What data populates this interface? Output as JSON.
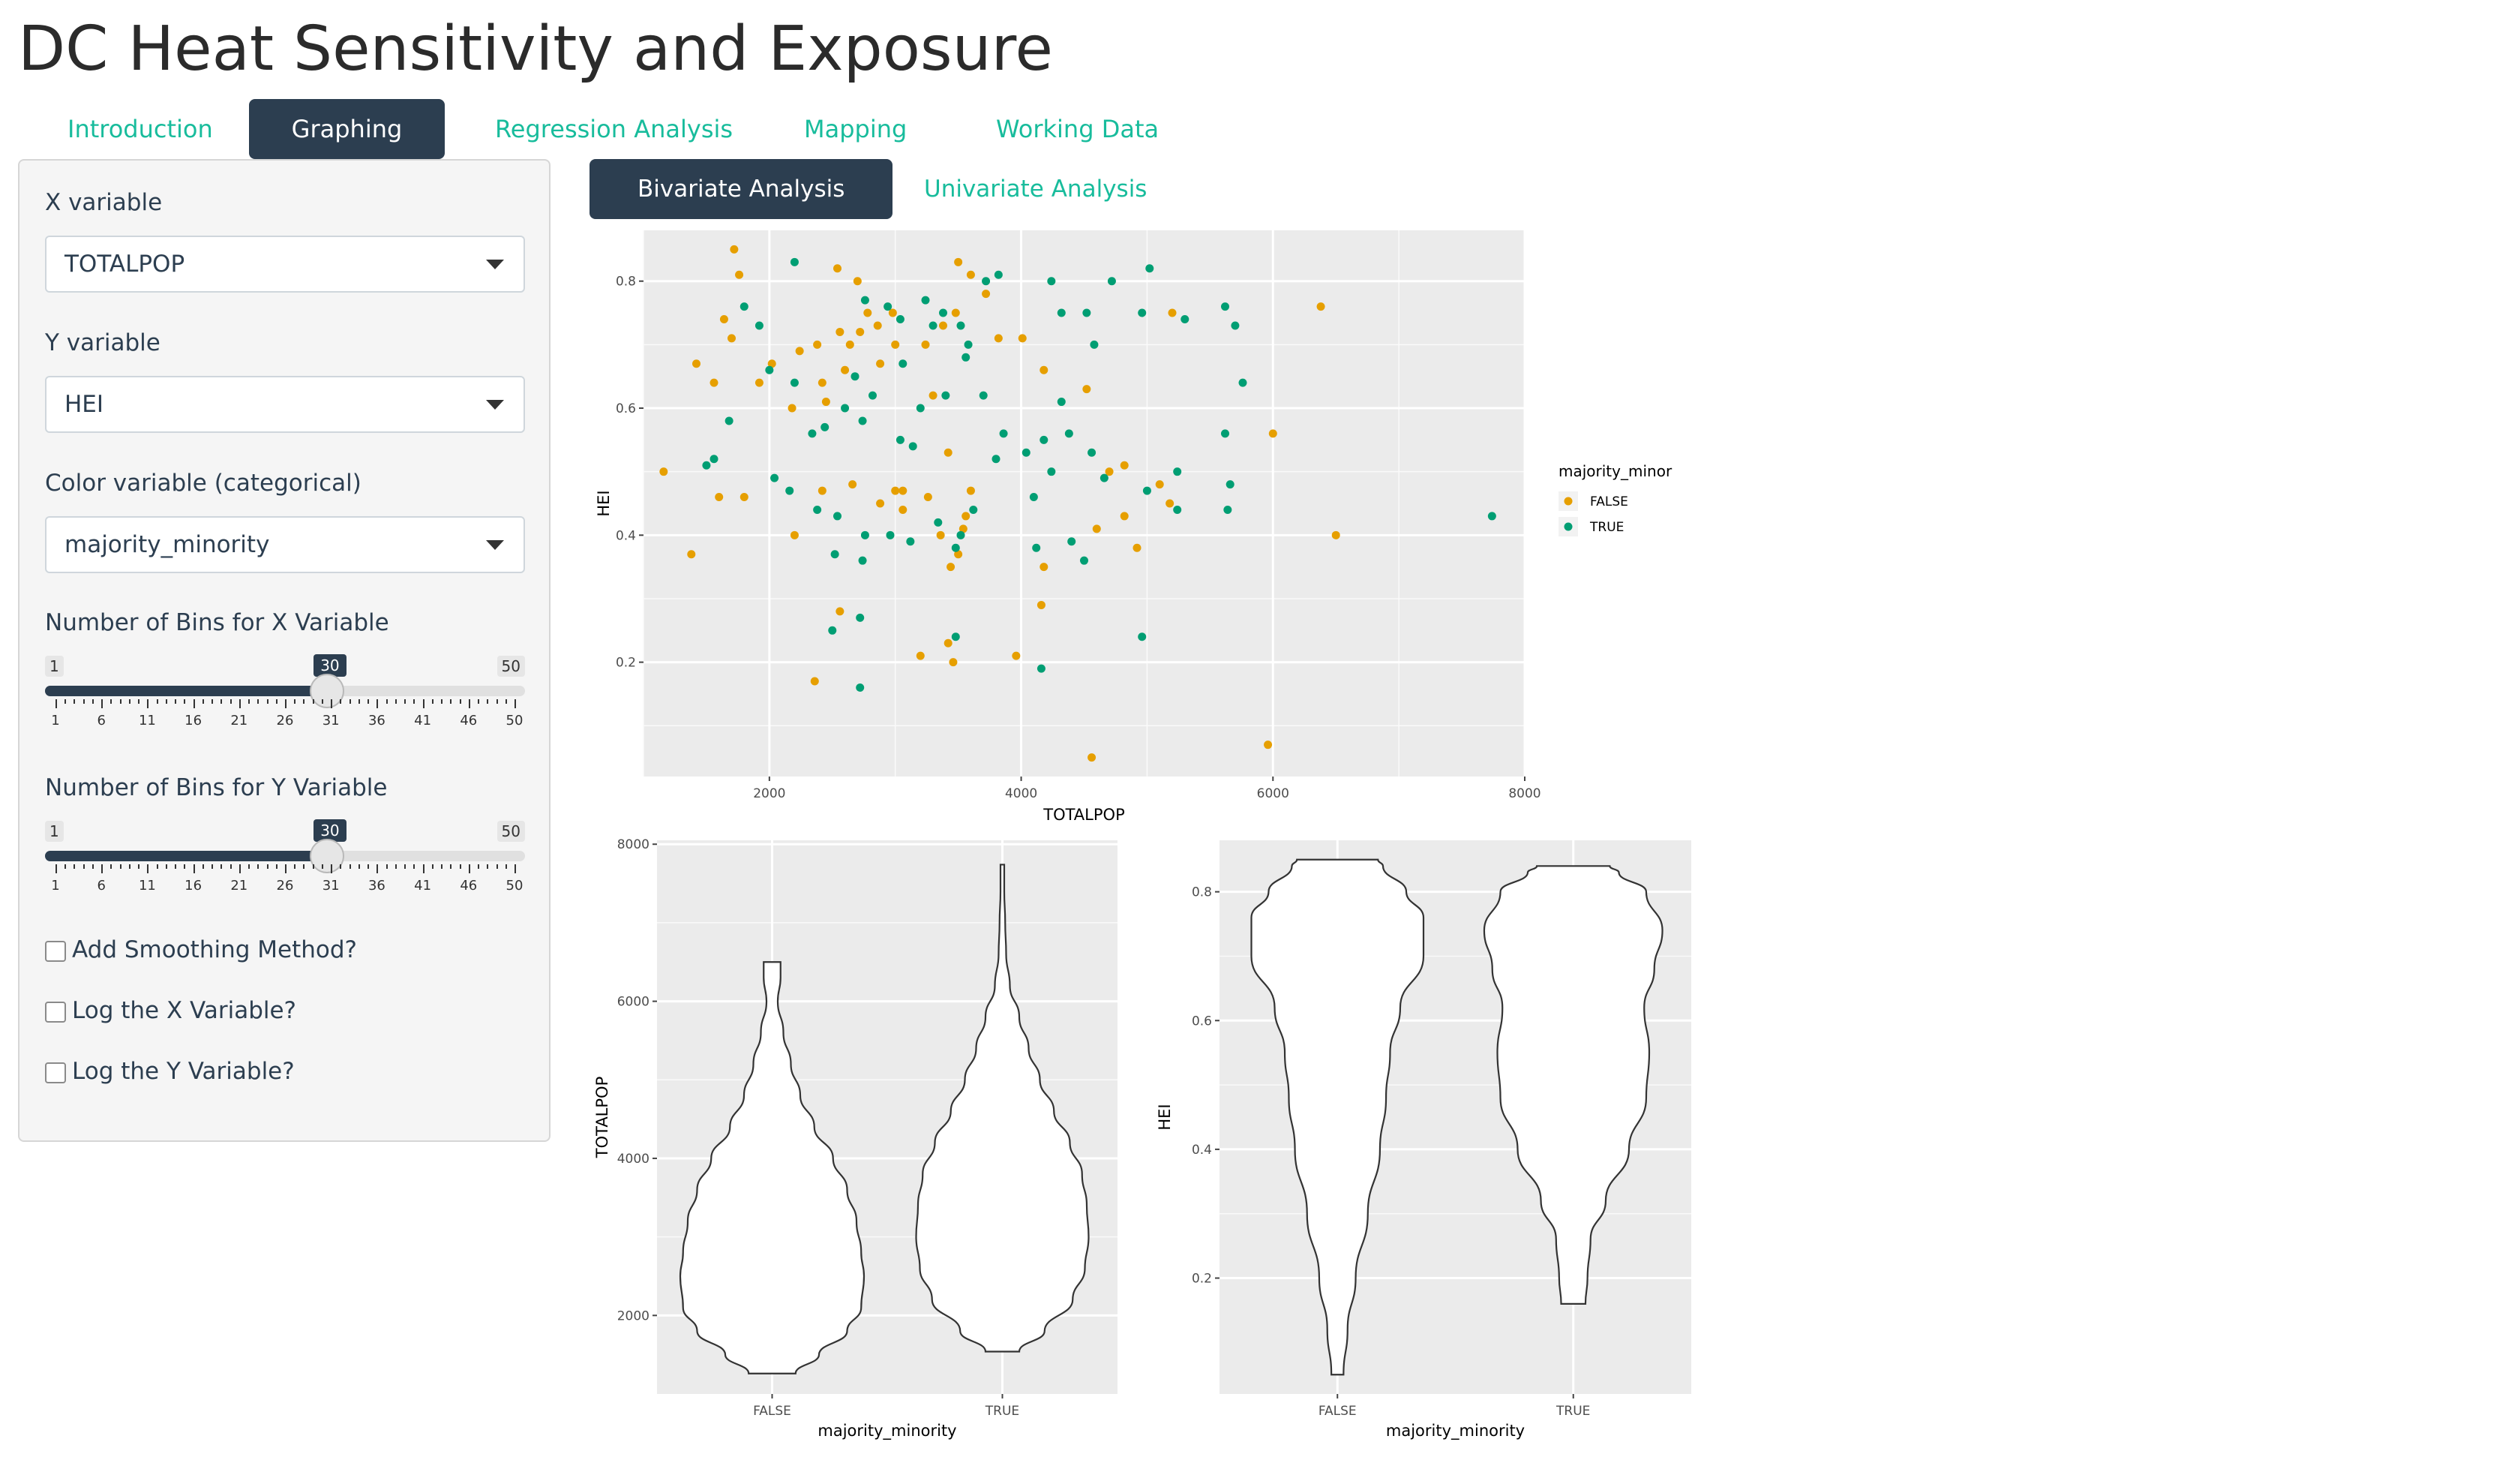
{
  "app": {
    "title": "DC Heat Sensitivity and Exposure"
  },
  "tabs": [
    {
      "label": "Introduction",
      "active": false
    },
    {
      "label": "Graphing",
      "active": true
    },
    {
      "label": "Regression Analysis",
      "active": false
    },
    {
      "label": "Mapping",
      "active": false
    },
    {
      "label": "Working Data",
      "active": false
    }
  ],
  "sidebar": {
    "x_label": "X variable",
    "x_value": "TOTALPOP",
    "y_label": "Y variable",
    "y_value": "HEI",
    "color_label": "Color variable (categorical)",
    "color_value": "majority_minority",
    "binsx": {
      "label": "Number of Bins for X Variable",
      "min": 1,
      "max": 50,
      "value": 30,
      "min_label": "1",
      "max_label": "50",
      "value_label": "30"
    },
    "binsy": {
      "label": "Number of Bins for Y Variable",
      "min": 1,
      "max": 50,
      "value": 30,
      "min_label": "1",
      "max_label": "50",
      "value_label": "30"
    },
    "slider_ticks": [
      "1",
      "6",
      "11",
      "16",
      "21",
      "26",
      "31",
      "36",
      "41",
      "46",
      "50"
    ],
    "checkboxes": [
      {
        "label": "Add Smoothing Method?",
        "checked": false
      },
      {
        "label": "Log the X Variable?",
        "checked": false
      },
      {
        "label": "Log the Y Variable?",
        "checked": false
      }
    ],
    "dropdown_icon": "chevron-down-icon"
  },
  "subtabs": [
    {
      "label": "Bivariate Analysis",
      "active": true
    },
    {
      "label": "Univariate Analysis",
      "active": false
    }
  ],
  "colors": {
    "false": "#E69F00",
    "true": "#009E73",
    "panel": "#EBEBEB",
    "accent": "#18bc9c",
    "primary": "#2c3e50"
  },
  "chart_data": [
    {
      "type": "scatter",
      "title": "",
      "xlabel": "TOTALPOP",
      "ylabel": "HEI",
      "xlim": [
        1000,
        8000
      ],
      "ylim": [
        0.02,
        0.88
      ],
      "xticks": [
        2000,
        4000,
        6000,
        8000
      ],
      "yticks": [
        0.2,
        0.4,
        0.6,
        0.8
      ],
      "xtick_labels": [
        "2000",
        "4000",
        "6000",
        "8000"
      ],
      "ytick_labels": [
        "0.2",
        "0.4",
        "0.6",
        "0.8"
      ],
      "legend": {
        "title": "majority_minority",
        "entries": [
          "FALSE",
          "TRUE"
        ],
        "position": "right"
      },
      "series": [
        {
          "name": "FALSE",
          "color": "#E69F00",
          "points": [
            [
              1720,
              0.85
            ],
            [
              1760,
              0.81
            ],
            [
              1640,
              0.74
            ],
            [
              1700,
              0.71
            ],
            [
              1420,
              0.67
            ],
            [
              1560,
              0.64
            ],
            [
              1920,
              0.64
            ],
            [
              2020,
              0.67
            ],
            [
              2380,
              0.7
            ],
            [
              2420,
              0.64
            ],
            [
              2450,
              0.61
            ],
            [
              2600,
              0.66
            ],
            [
              2640,
              0.7
            ],
            [
              2720,
              0.72
            ],
            [
              2780,
              0.75
            ],
            [
              2860,
              0.73
            ],
            [
              2880,
              0.67
            ],
            [
              3000,
              0.7
            ],
            [
              3240,
              0.7
            ],
            [
              3380,
              0.73
            ],
            [
              3480,
              0.75
            ],
            [
              3500,
              0.83
            ],
            [
              3600,
              0.81
            ],
            [
              3720,
              0.78
            ],
            [
              3820,
              0.71
            ],
            [
              4180,
              0.66
            ],
            [
              4520,
              0.63
            ],
            [
              5200,
              0.75
            ],
            [
              6380,
              0.76
            ],
            [
              6000,
              0.56
            ],
            [
              1160,
              0.5
            ],
            [
              1600,
              0.46
            ],
            [
              2200,
              0.4
            ],
            [
              2420,
              0.47
            ],
            [
              2660,
              0.48
            ],
            [
              2880,
              0.45
            ],
            [
              3000,
              0.47
            ],
            [
              3060,
              0.44
            ],
            [
              3260,
              0.46
            ],
            [
              3360,
              0.4
            ],
            [
              3440,
              0.35
            ],
            [
              3500,
              0.37
            ],
            [
              3540,
              0.41
            ],
            [
              3560,
              0.43
            ],
            [
              4180,
              0.35
            ],
            [
              4600,
              0.41
            ],
            [
              4820,
              0.43
            ],
            [
              4920,
              0.38
            ],
            [
              5100,
              0.48
            ],
            [
              5180,
              0.45
            ],
            [
              6500,
              0.4
            ],
            [
              1380,
              0.37
            ],
            [
              2560,
              0.28
            ],
            [
              2360,
              0.17
            ],
            [
              3200,
              0.21
            ],
            [
              3420,
              0.23
            ],
            [
              3460,
              0.2
            ],
            [
              3960,
              0.21
            ],
            [
              4160,
              0.29
            ],
            [
              4560,
              0.05
            ],
            [
              5960,
              0.07
            ],
            [
              2240,
              0.69
            ],
            [
              2560,
              0.72
            ],
            [
              1800,
              0.46
            ],
            [
              2700,
              0.8
            ],
            [
              3300,
              0.62
            ],
            [
              3420,
              0.53
            ],
            [
              4700,
              0.5
            ],
            [
              3060,
              0.47
            ],
            [
              3600,
              0.47
            ],
            [
              2540,
              0.82
            ],
            [
              2180,
              0.6
            ],
            [
              4010,
              0.71
            ],
            [
              4820,
              0.51
            ],
            [
              2980,
              0.75
            ]
          ]
        },
        {
          "name": "TRUE",
          "color": "#009E73",
          "points": [
            [
              2200,
              0.83
            ],
            [
              2760,
              0.77
            ],
            [
              2940,
              0.76
            ],
            [
              3040,
              0.74
            ],
            [
              3240,
              0.77
            ],
            [
              3300,
              0.73
            ],
            [
              3380,
              0.75
            ],
            [
              3520,
              0.73
            ],
            [
              3580,
              0.7
            ],
            [
              3720,
              0.8
            ],
            [
              3820,
              0.81
            ],
            [
              4240,
              0.8
            ],
            [
              4320,
              0.75
            ],
            [
              4520,
              0.75
            ],
            [
              4580,
              0.7
            ],
            [
              4720,
              0.8
            ],
            [
              4960,
              0.75
            ],
            [
              5020,
              0.82
            ],
            [
              5300,
              0.74
            ],
            [
              5620,
              0.76
            ],
            [
              5700,
              0.73
            ],
            [
              5760,
              0.64
            ],
            [
              1800,
              0.76
            ],
            [
              1920,
              0.73
            ],
            [
              2000,
              0.66
            ],
            [
              2200,
              0.64
            ],
            [
              2340,
              0.56
            ],
            [
              2440,
              0.57
            ],
            [
              2600,
              0.6
            ],
            [
              2740,
              0.58
            ],
            [
              2820,
              0.62
            ],
            [
              3040,
              0.55
            ],
            [
              3140,
              0.54
            ],
            [
              3200,
              0.6
            ],
            [
              3400,
              0.62
            ],
            [
              3700,
              0.62
            ],
            [
              3860,
              0.56
            ],
            [
              4180,
              0.55
            ],
            [
              4380,
              0.56
            ],
            [
              4560,
              0.53
            ],
            [
              4660,
              0.49
            ],
            [
              5240,
              0.5
            ],
            [
              5620,
              0.56
            ],
            [
              5660,
              0.48
            ],
            [
              1560,
              0.52
            ],
            [
              1500,
              0.51
            ],
            [
              2040,
              0.49
            ],
            [
              2160,
              0.47
            ],
            [
              2380,
              0.44
            ],
            [
              2540,
              0.43
            ],
            [
              2760,
              0.4
            ],
            [
              2960,
              0.4
            ],
            [
              3120,
              0.39
            ],
            [
              3340,
              0.42
            ],
            [
              3520,
              0.4
            ],
            [
              3620,
              0.44
            ],
            [
              3800,
              0.52
            ],
            [
              4040,
              0.53
            ],
            [
              4100,
              0.46
            ],
            [
              4240,
              0.5
            ],
            [
              4400,
              0.39
            ],
            [
              4500,
              0.36
            ],
            [
              5000,
              0.47
            ],
            [
              5240,
              0.44
            ],
            [
              5640,
              0.44
            ],
            [
              7740,
              0.43
            ],
            [
              2520,
              0.37
            ],
            [
              2740,
              0.36
            ],
            [
              3480,
              0.38
            ],
            [
              4120,
              0.38
            ],
            [
              2500,
              0.25
            ],
            [
              2720,
              0.27
            ],
            [
              3480,
              0.24
            ],
            [
              4160,
              0.19
            ],
            [
              4960,
              0.24
            ],
            [
              2720,
              0.16
            ],
            [
              3060,
              0.67
            ],
            [
              2680,
              0.65
            ],
            [
              3560,
              0.68
            ],
            [
              4320,
              0.61
            ],
            [
              1680,
              0.58
            ]
          ]
        }
      ]
    },
    {
      "type": "violin",
      "title": "",
      "xlabel": "majority_minority",
      "ylabel": "TOTALPOP",
      "categories": [
        "FALSE",
        "TRUE"
      ],
      "ylim": [
        1000,
        8050
      ],
      "yticks": [
        2000,
        4000,
        6000,
        8000
      ],
      "ytick_labels": [
        "2000",
        "4000",
        "6000",
        "8000"
      ],
      "violins": [
        {
          "name": "FALSE",
          "profile": [
            [
              1260,
              0.25
            ],
            [
              1500,
              0.5
            ],
            [
              1800,
              0.8
            ],
            [
              2100,
              0.95
            ],
            [
              2500,
              0.98
            ],
            [
              2800,
              0.95
            ],
            [
              3200,
              0.9
            ],
            [
              3600,
              0.8
            ],
            [
              4000,
              0.65
            ],
            [
              4400,
              0.45
            ],
            [
              4800,
              0.3
            ],
            [
              5200,
              0.2
            ],
            [
              5600,
              0.12
            ],
            [
              6000,
              0.06
            ],
            [
              6300,
              0.09
            ],
            [
              6500,
              0.09
            ]
          ]
        },
        {
          "name": "TRUE",
          "profile": [
            [
              1540,
              0.18
            ],
            [
              1800,
              0.45
            ],
            [
              2200,
              0.75
            ],
            [
              2600,
              0.88
            ],
            [
              3000,
              0.92
            ],
            [
              3400,
              0.9
            ],
            [
              3800,
              0.85
            ],
            [
              4200,
              0.72
            ],
            [
              4600,
              0.55
            ],
            [
              5000,
              0.4
            ],
            [
              5400,
              0.28
            ],
            [
              5800,
              0.18
            ],
            [
              6200,
              0.08
            ],
            [
              6600,
              0.04
            ],
            [
              7000,
              0.03
            ],
            [
              7400,
              0.02
            ],
            [
              7740,
              0.02
            ]
          ]
        }
      ]
    },
    {
      "type": "violin",
      "title": "",
      "xlabel": "majority_minority",
      "ylabel": "HEI",
      "categories": [
        "FALSE",
        "TRUE"
      ],
      "ylim": [
        0.02,
        0.88
      ],
      "yticks": [
        0.2,
        0.4,
        0.6,
        0.8
      ],
      "ytick_labels": [
        "0.2",
        "0.4",
        "0.6",
        "0.8"
      ],
      "violins": [
        {
          "name": "FALSE",
          "profile": [
            [
              0.05,
              0.06
            ],
            [
              0.12,
              0.1
            ],
            [
              0.2,
              0.18
            ],
            [
              0.3,
              0.3
            ],
            [
              0.4,
              0.42
            ],
            [
              0.48,
              0.48
            ],
            [
              0.55,
              0.52
            ],
            [
              0.62,
              0.62
            ],
            [
              0.7,
              0.85
            ],
            [
              0.76,
              0.85
            ],
            [
              0.8,
              0.68
            ],
            [
              0.84,
              0.45
            ],
            [
              0.85,
              0.4
            ]
          ]
        },
        {
          "name": "TRUE",
          "profile": [
            [
              0.16,
              0.12
            ],
            [
              0.2,
              0.14
            ],
            [
              0.26,
              0.17
            ],
            [
              0.32,
              0.32
            ],
            [
              0.4,
              0.55
            ],
            [
              0.48,
              0.72
            ],
            [
              0.55,
              0.75
            ],
            [
              0.62,
              0.7
            ],
            [
              0.68,
              0.8
            ],
            [
              0.74,
              0.88
            ],
            [
              0.8,
              0.72
            ],
            [
              0.83,
              0.45
            ],
            [
              0.84,
              0.36
            ]
          ]
        }
      ]
    }
  ]
}
